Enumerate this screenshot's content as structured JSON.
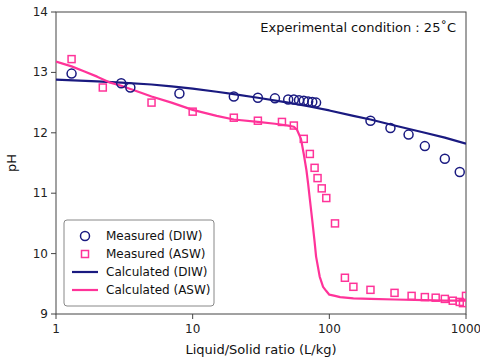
{
  "chart_data": {
    "type": "line",
    "title": "Experimental condition : 25˚C",
    "x_label": "Liquid/Solid ratio (L/kg)",
    "y_label": "pH",
    "log": "x",
    "xlim": [
      1,
      1000
    ],
    "ylim": [
      9,
      14
    ],
    "xticks": [
      1,
      10,
      100,
      1000
    ],
    "yticks": [
      9,
      10,
      11,
      12,
      13,
      14
    ],
    "grid": false,
    "legend": "lower left",
    "series": [
      {
        "name": "Measured (DIW)",
        "type": "scatter",
        "marker": "circle",
        "color": "#1a1a80",
        "x": [
          1.3,
          3.0,
          3.5,
          8,
          20,
          30,
          40,
          50,
          55,
          60,
          65,
          70,
          75,
          80,
          200,
          280,
          380,
          500,
          700,
          900
        ],
        "values": [
          12.98,
          12.82,
          12.75,
          12.65,
          12.6,
          12.58,
          12.57,
          12.55,
          12.55,
          12.54,
          12.53,
          12.52,
          12.51,
          12.5,
          12.2,
          12.08,
          11.97,
          11.78,
          11.57,
          11.35
        ]
      },
      {
        "name": "Measured (ASW)",
        "type": "scatter",
        "marker": "square",
        "color": "#ff3399",
        "x": [
          1.3,
          2.2,
          5.0,
          10,
          20,
          30,
          45,
          55,
          65,
          72,
          78,
          82,
          88,
          95,
          110,
          130,
          150,
          200,
          300,
          400,
          500,
          600,
          700,
          800,
          900,
          950,
          1000
        ],
        "values": [
          13.22,
          12.75,
          12.5,
          12.35,
          12.25,
          12.2,
          12.18,
          12.12,
          11.9,
          11.65,
          11.42,
          11.25,
          11.08,
          10.92,
          10.5,
          9.6,
          9.45,
          9.4,
          9.35,
          9.3,
          9.28,
          9.27,
          9.25,
          9.22,
          9.2,
          9.18,
          9.3
        ]
      },
      {
        "name": "Calculated (DIW)",
        "type": "line",
        "line_style": "solid",
        "color": "#1a1a80",
        "x": [
          1,
          2,
          3,
          5,
          7,
          10,
          15,
          20,
          30,
          50,
          70,
          100,
          150,
          200,
          300,
          500,
          700,
          1000
        ],
        "values": [
          12.88,
          12.85,
          12.83,
          12.8,
          12.77,
          12.73,
          12.68,
          12.64,
          12.58,
          12.5,
          12.44,
          12.37,
          12.28,
          12.22,
          12.12,
          12.0,
          11.92,
          11.82
        ]
      },
      {
        "name": "Calculated (ASW)",
        "type": "line",
        "line_style": "solid",
        "color": "#ff3399",
        "x": [
          1,
          1.3,
          1.6,
          2,
          2.5,
          3,
          4,
          5,
          7,
          10,
          15,
          20,
          30,
          40,
          50,
          55,
          58,
          62,
          65,
          68,
          70,
          72,
          75,
          78,
          80,
          85,
          90,
          95,
          100,
          110,
          120,
          150,
          200,
          300,
          500,
          700,
          1000
        ],
        "values": [
          13.18,
          13.1,
          13.02,
          12.93,
          12.83,
          12.78,
          12.68,
          12.6,
          12.5,
          12.38,
          12.28,
          12.22,
          12.18,
          12.15,
          12.12,
          12.1,
          12.05,
          11.9,
          11.65,
          11.38,
          11.15,
          10.9,
          10.55,
          10.2,
          9.95,
          9.62,
          9.45,
          9.38,
          9.32,
          9.3,
          9.28,
          9.26,
          9.25,
          9.24,
          9.23,
          9.22,
          9.22
        ]
      }
    ]
  }
}
